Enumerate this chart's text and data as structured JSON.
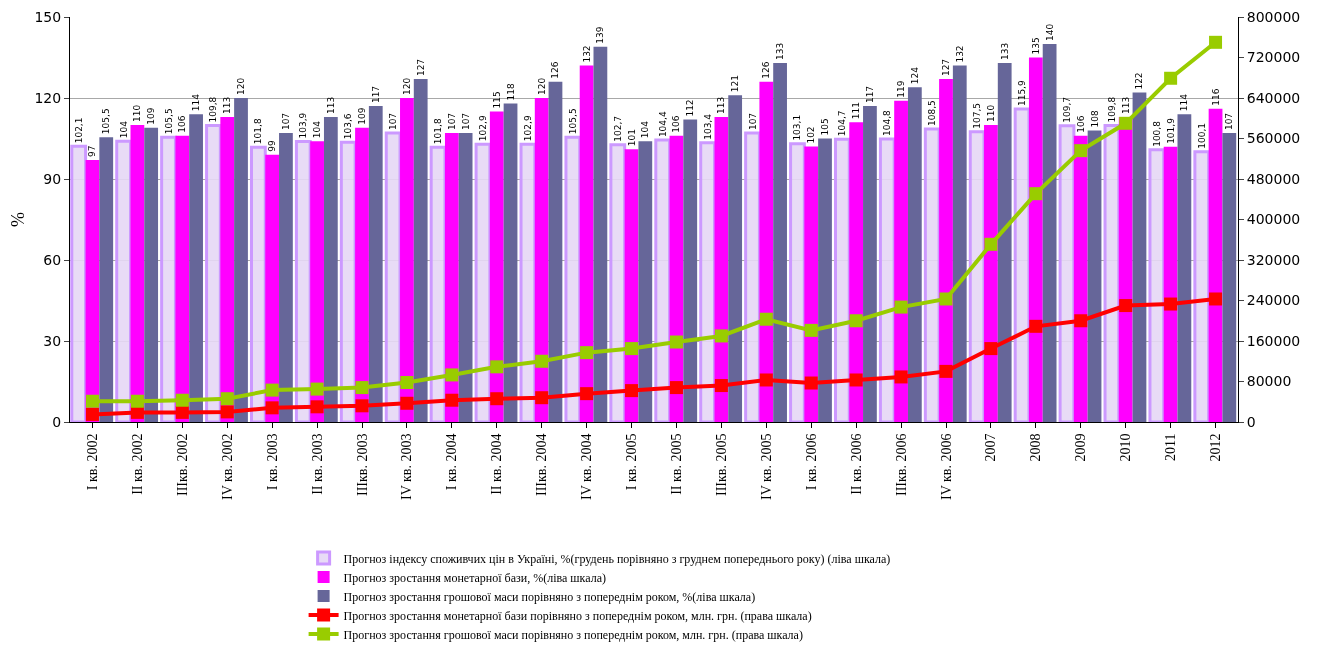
{
  "chart_data": {
    "type": "bar",
    "ylabel": "%",
    "categories": [
      "I кв. 2002",
      "II кв. 2002",
      "IIIкв. 2002",
      "IV кв. 2002",
      "I кв. 2003",
      "II кв. 2003",
      "IIIкв. 2003",
      "IV кв. 2003",
      "I кв. 2004",
      "II кв. 2004",
      "IIIкв. 2004",
      "IV кв. 2004",
      "I кв. 2005",
      "II кв. 2005",
      "IIIкв. 2005",
      "IV кв. 2005",
      "I кв. 2006",
      "II кв. 2006",
      "IIIкв. 2006",
      "IV кв. 2006",
      "2007",
      "2008",
      "2009",
      "2010",
      "2011",
      "2012"
    ],
    "series": [
      {
        "name": "Прогноз індексу споживчих цін в Україні, %(грудень порівняно з груднем попереднього року) (ліва шкала)",
        "color": "#cc99ff",
        "values": [
          102.1,
          104,
          105.5,
          109.8,
          101.8,
          103.9,
          103.6,
          107,
          101.8,
          102.9,
          102.9,
          105.5,
          102.7,
          104.4,
          103.4,
          107,
          103.1,
          104.7,
          104.8,
          108.5,
          107.5,
          115.9,
          109.7,
          109.8,
          100.8,
          100.1
        ],
        "value_labels": [
          "102,1",
          "104",
          "105,5",
          "109,8",
          "101,8",
          "103,9",
          "103,6",
          "107",
          "101,8",
          "102,9",
          "102,9",
          "105,5",
          "102,7",
          "104,4",
          "103,4",
          "107",
          "103,1",
          "104,7",
          "104,8",
          "108,5",
          "107,5",
          "115,9",
          "109,7",
          "109,8",
          "100,8",
          "100,1"
        ]
      },
      {
        "name": "Прогноз зростання монетарної бази, %(ліва шкала)",
        "color": "#ff00ff",
        "values": [
          97,
          110,
          106,
          113,
          99,
          104,
          109,
          120,
          107,
          115,
          120,
          132,
          101,
          106,
          113,
          126,
          102,
          111,
          119,
          127,
          110,
          135,
          106,
          113,
          101.9,
          116
        ],
        "value_labels": [
          "97",
          "110",
          "106",
          "113",
          "99",
          "104",
          "109",
          "120",
          "107",
          "115",
          "120",
          "132",
          "101",
          "106",
          "113",
          "126",
          "102",
          "111",
          "119",
          "127",
          "110",
          "135",
          "106",
          "113",
          "101,9",
          "116"
        ]
      },
      {
        "name": "Прогноз зростання грошової маси порівняно з попереднім роком, %(ліва шкала)",
        "color": "#666699",
        "values": [
          105.5,
          109,
          114,
          120,
          107,
          113,
          117,
          127,
          107,
          118,
          126,
          139,
          104,
          112,
          121,
          133,
          105,
          117,
          124,
          132,
          133,
          140,
          108,
          122,
          114,
          107
        ],
        "value_labels": [
          "105,5",
          "109",
          "114",
          "120",
          "107",
          "113",
          "117",
          "127",
          "107",
          "118",
          "126",
          "139",
          "104",
          "112",
          "121",
          "133",
          "105",
          "117",
          "124",
          "132",
          "133",
          "140",
          "108",
          "122",
          "114",
          "107"
        ]
      },
      {
        "name": "Прогноз зростання монетарної бази порівняно з попереднім роком, млн. грн. (права шкала)",
        "type": "line",
        "axis": "y2",
        "color": "#ff0000",
        "values": [
          15000,
          19000,
          19000,
          20000,
          28000,
          30000,
          32000,
          37000,
          43000,
          46000,
          48000,
          56000,
          62000,
          68000,
          72000,
          83000,
          77000,
          83000,
          89000,
          100000,
          145000,
          189000,
          200000,
          230000,
          233000,
          243000
        ]
      },
      {
        "name": "Прогноз зростання грошової маси порівняно з попереднім роком, млн. грн. (права шкала)",
        "type": "line",
        "axis": "y2",
        "color": "#99cc00",
        "values": [
          41000,
          41000,
          43000,
          46000,
          63000,
          65000,
          68000,
          78000,
          93000,
          109000,
          120000,
          137000,
          145000,
          158000,
          170000,
          203000,
          181000,
          200000,
          227000,
          243000,
          351000,
          451000,
          536000,
          590000,
          679000,
          750000
        ]
      }
    ],
    "ylim": [
      0,
      150
    ],
    "yticks": [
      0,
      30,
      60,
      90,
      120,
      150
    ],
    "y2lim": [
      0,
      800000
    ],
    "y2ticks": [
      0,
      80000,
      160000,
      240000,
      320000,
      400000,
      480000,
      560000,
      640000,
      720000,
      800000
    ],
    "grid": "y",
    "legend": "bottom",
    "marker": "square",
    "line_style": "solid"
  }
}
